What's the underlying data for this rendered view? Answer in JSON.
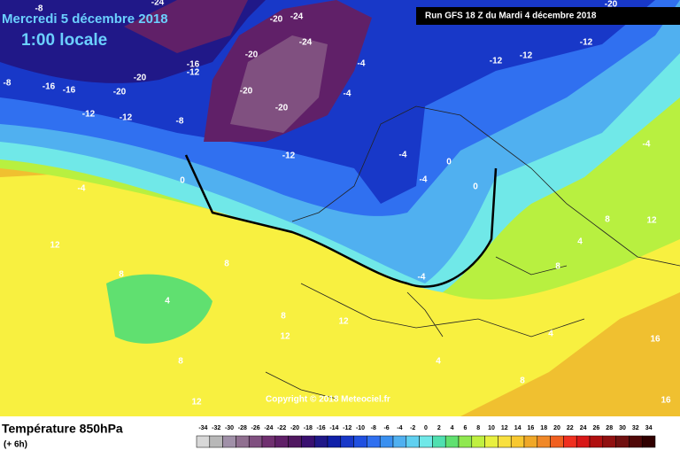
{
  "header": {
    "date": "Mercredi 5 décembre 2018",
    "time": "1:00 locale",
    "run": "Run GFS 18 Z du Mardi 4 décembre 2018"
  },
  "copyright": "Copyright © 2018 Meteociel.fr",
  "footer": {
    "title": "Température 850hPa",
    "lead": "(+ 6h)"
  },
  "scale": {
    "values": [
      -34,
      -32,
      -30,
      -28,
      -26,
      -24,
      -22,
      -20,
      -18,
      -16,
      -14,
      -12,
      -10,
      -8,
      -6,
      -4,
      -2,
      0,
      2,
      4,
      6,
      8,
      10,
      12,
      14,
      16,
      18,
      20,
      22,
      24,
      26,
      28,
      30,
      32,
      34
    ],
    "colors": [
      "#d8d8d8",
      "#b8b8b8",
      "#a090a8",
      "#907090",
      "#805080",
      "#703070",
      "#602068",
      "#501860",
      "#3a1070",
      "#201888",
      "#1020a8",
      "#1838c8",
      "#2050e0",
      "#3070f0",
      "#3a90f0",
      "#50b0f0",
      "#60d0f0",
      "#70e8e8",
      "#50e0b0",
      "#60e070",
      "#90e850",
      "#c0f040",
      "#e8f040",
      "#f8e040",
      "#f8c830",
      "#f0a828",
      "#f08828",
      "#f06020",
      "#f03020",
      "#d81818",
      "#b01010",
      "#901010",
      "#701010",
      "#500808",
      "#300000"
    ]
  },
  "contour_labels": [
    -24,
    -20,
    -24,
    -16,
    -12,
    -20,
    -16,
    -16,
    -20,
    -12,
    -12,
    -8,
    -8,
    -20,
    -20,
    -24,
    -20,
    -4,
    -4,
    -12,
    -12,
    -4,
    -8,
    -4,
    0,
    -4,
    -4,
    0,
    12,
    8,
    8,
    4,
    8,
    12,
    4,
    12,
    8,
    4,
    8,
    12,
    16,
    8,
    4,
    8,
    12,
    16,
    -12,
    -4,
    0,
    -20,
    -12
  ]
}
